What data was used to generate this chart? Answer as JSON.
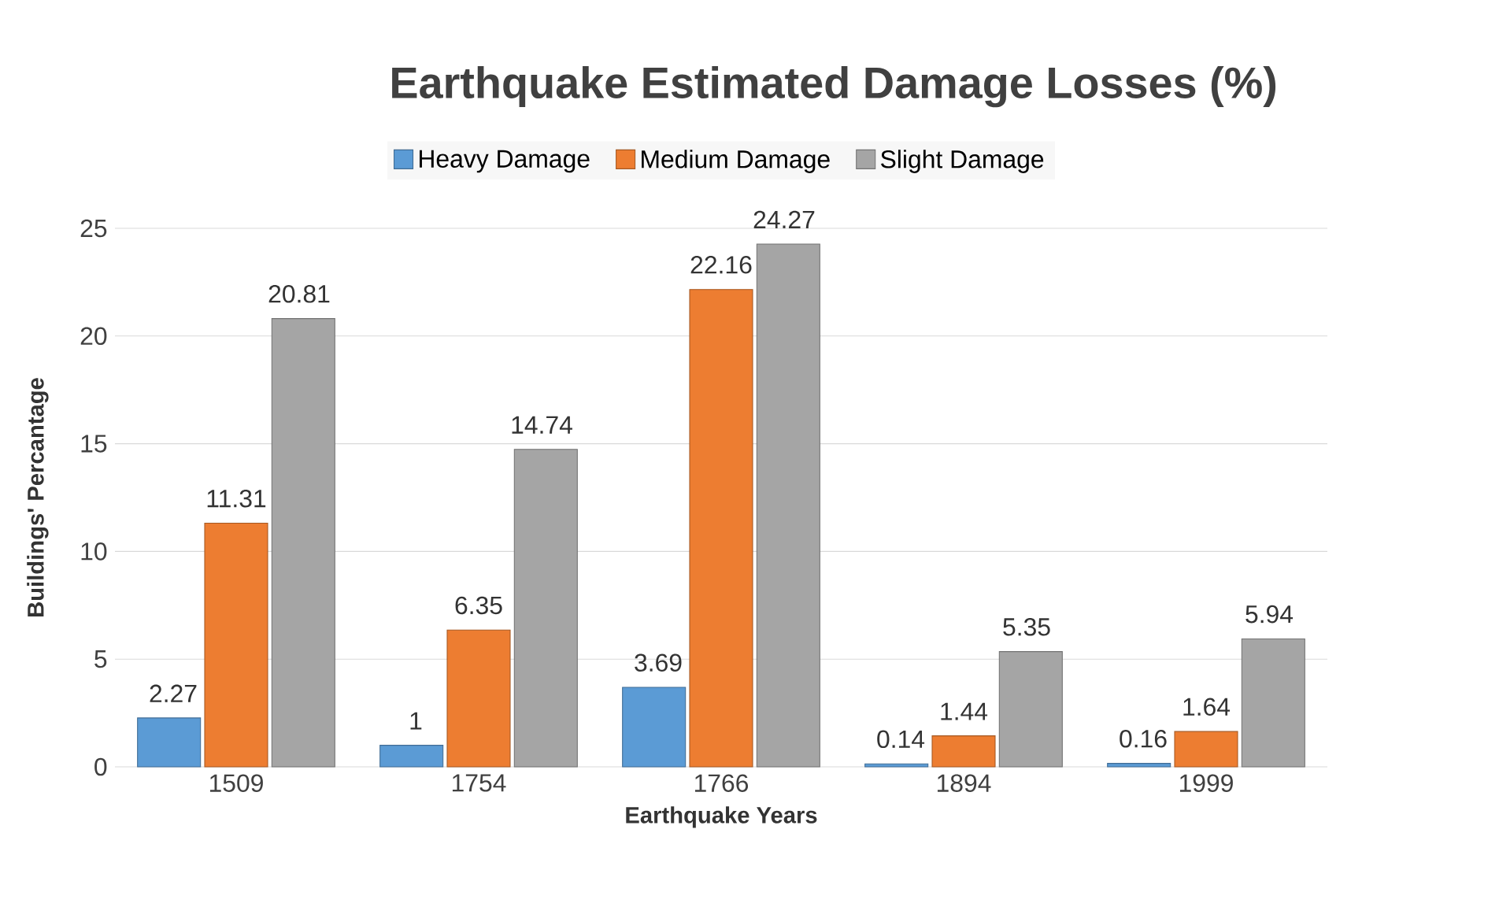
{
  "chart_data": {
    "type": "bar",
    "title": "Earthquake Estimated Damage Losses (%)",
    "xlabel": "Earthquake Years",
    "ylabel": "Buildings' Percantage",
    "categories": [
      "1509",
      "1754",
      "1766",
      "1894",
      "1999"
    ],
    "series": [
      {
        "name": "Heavy Damage",
        "color": "#5b9bd5",
        "values": [
          2.27,
          1,
          3.69,
          0.14,
          0.16
        ]
      },
      {
        "name": "Medium Damage",
        "color": "#ed7d31",
        "values": [
          11.31,
          6.35,
          22.16,
          1.44,
          1.64
        ]
      },
      {
        "name": "Slight Damage",
        "color": "#a5a5a5",
        "values": [
          20.81,
          14.74,
          24.27,
          5.35,
          5.94
        ]
      }
    ],
    "ylim": [
      0,
      25
    ],
    "yticks": [
      0,
      5,
      10,
      15,
      20,
      25
    ],
    "grid": "y",
    "legend": "top",
    "data_labels": true
  }
}
